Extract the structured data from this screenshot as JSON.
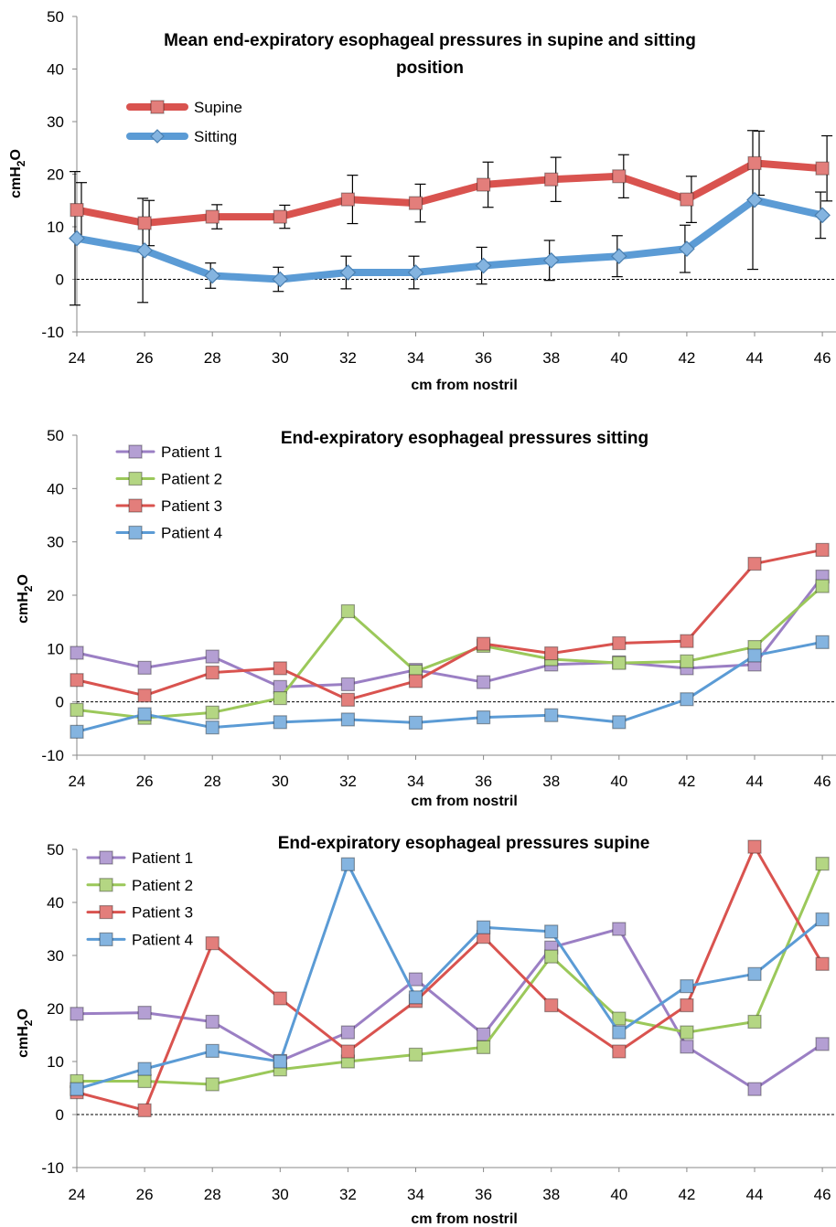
{
  "chart_data": [
    {
      "type": "line",
      "title_lines": [
        "Mean end-expiratory esophageal pressures in supine and sitting",
        "position"
      ],
      "xlabel": "cm from nostril",
      "ylabel": "cmH2O",
      "ylim": [
        -10,
        50
      ],
      "yticks": [
        "50",
        "40",
        "30",
        "20",
        "10",
        "0",
        "-10"
      ],
      "x": [
        24,
        26,
        28,
        30,
        32,
        34,
        36,
        38,
        40,
        42,
        44,
        46
      ],
      "xticks": [
        "24",
        "26",
        "28",
        "30",
        "32",
        "34",
        "36",
        "38",
        "40",
        "42",
        "44",
        "46"
      ],
      "legend_position": "top-left",
      "zero_line": true,
      "series": [
        {
          "name": "Supine",
          "color": "#d9534f",
          "marker": "square",
          "width": 8,
          "values": [
            13.2,
            10.7,
            11.9,
            11.9,
            15.2,
            14.5,
            18,
            19,
            19.6,
            15.2,
            22.1,
            21.1
          ],
          "err": [
            5.2,
            4.3,
            2.3,
            2.2,
            4.6,
            3.6,
            4.3,
            4.2,
            4.1,
            4.4,
            6.1,
            6.2
          ]
        },
        {
          "name": "Sitting",
          "color": "#5b9bd5",
          "marker": "diamond",
          "width": 8,
          "values": [
            7.8,
            5.5,
            0.7,
            0,
            1.3,
            1.3,
            2.6,
            3.6,
            4.4,
            5.8,
            15.1,
            12.2
          ],
          "err": [
            12.7,
            9.9,
            2.4,
            2.3,
            3.1,
            3.1,
            3.5,
            3.8,
            3.9,
            4.5,
            13.2,
            4.4
          ]
        }
      ]
    },
    {
      "type": "line",
      "title_lines": [
        "End-expiratory esophageal pressures sitting"
      ],
      "xlabel": "cm from nostril",
      "ylabel": "cmH2O",
      "ylim": [
        -10,
        50
      ],
      "yticks": [
        "50",
        "40",
        "30",
        "20",
        "10",
        "0",
        "-10"
      ],
      "x": [
        24,
        26,
        28,
        30,
        32,
        34,
        36,
        38,
        40,
        42,
        44,
        46
      ],
      "xticks": [
        "24",
        "26",
        "28",
        "30",
        "32",
        "34",
        "36",
        "38",
        "40",
        "42",
        "44",
        "46"
      ],
      "legend_position": "top-left",
      "zero_line": true,
      "series": [
        {
          "name": "Patient 1",
          "color": "#9b7fc4",
          "marker": "square",
          "width": 3,
          "values": [
            9.2,
            6.4,
            8.5,
            2.8,
            3.3,
            6,
            3.7,
            7,
            7.4,
            6.3,
            7,
            23.5
          ]
        },
        {
          "name": "Patient 2",
          "color": "#9bc85a",
          "marker": "square",
          "width": 3,
          "values": [
            -1.5,
            -3,
            -2,
            0.7,
            17,
            5.7,
            10.5,
            8,
            7.3,
            7.6,
            10.3,
            21.7
          ]
        },
        {
          "name": "Patient 3",
          "color": "#d9534f",
          "marker": "square",
          "width": 3,
          "values": [
            4.1,
            1.2,
            5.5,
            6.3,
            0.4,
            3.9,
            10.9,
            9.1,
            11,
            11.4,
            25.9,
            28.5
          ]
        },
        {
          "name": "Patient 4",
          "color": "#5b9bd5",
          "marker": "square",
          "width": 3,
          "values": [
            -5.6,
            -2.3,
            -4.8,
            -3.8,
            -3.3,
            -3.9,
            -2.9,
            -2.5,
            -3.8,
            0.5,
            8.7,
            11.2
          ]
        }
      ]
    },
    {
      "type": "line",
      "title_lines": [
        "End-expiratory esophageal pressures supine"
      ],
      "xlabel": "cm from nostril",
      "ylabel": "cmH2O",
      "ylim": [
        -10,
        50
      ],
      "yticks": [
        "50",
        "40",
        "30",
        "20",
        "10",
        "0",
        "-10"
      ],
      "x": [
        24,
        26,
        28,
        30,
        32,
        34,
        36,
        38,
        40,
        42,
        44,
        46
      ],
      "xticks": [
        "24",
        "26",
        "28",
        "30",
        "32",
        "34",
        "36",
        "38",
        "40",
        "42",
        "44",
        "46"
      ],
      "legend_position": "top-left",
      "zero_line": true,
      "series": [
        {
          "name": "Patient 1",
          "color": "#9b7fc4",
          "marker": "square",
          "width": 3,
          "values": [
            19,
            19.2,
            17.5,
            10.1,
            15.5,
            25.5,
            15.1,
            31.5,
            35,
            12.8,
            4.8,
            13.3
          ]
        },
        {
          "name": "Patient 2",
          "color": "#9bc85a",
          "marker": "square",
          "width": 3,
          "values": [
            6.3,
            6.3,
            5.7,
            8.5,
            10,
            11.3,
            12.7,
            29.8,
            18.1,
            15.5,
            17.5,
            47.3
          ]
        },
        {
          "name": "Patient 3",
          "color": "#d9534f",
          "marker": "square",
          "width": 3,
          "values": [
            4.2,
            0.8,
            32.3,
            21.9,
            11.9,
            21.4,
            33.5,
            20.6,
            11.9,
            20.6,
            50.5,
            28.4
          ]
        },
        {
          "name": "Patient 4",
          "color": "#5b9bd5",
          "marker": "square",
          "width": 3,
          "values": [
            4.8,
            8.6,
            12,
            10,
            47.2,
            22.1,
            35.3,
            34.5,
            15.5,
            24.2,
            26.5,
            36.8
          ]
        }
      ]
    }
  ]
}
